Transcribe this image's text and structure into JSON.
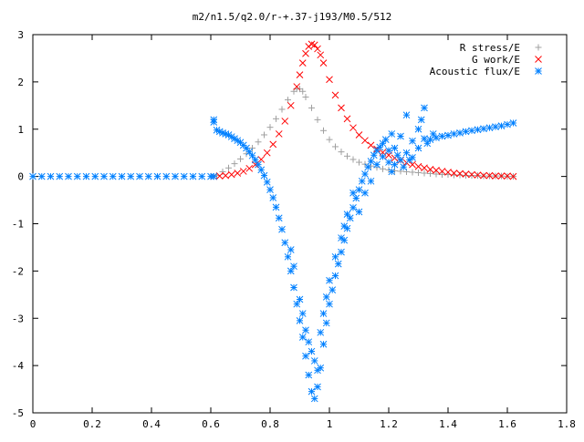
{
  "chart_data": {
    "type": "scatter",
    "title": "m2/n1.5/q2.0/r-+.37-j193/M0.5/512",
    "xlabel": "",
    "ylabel": "",
    "xlim": [
      0,
      1.8
    ],
    "ylim": [
      -5,
      3
    ],
    "x_ticks": [
      "0",
      "0.2",
      "0.4",
      "0.6",
      "0.8",
      "1",
      "1.2",
      "1.4",
      "1.6",
      "1.8"
    ],
    "y_ticks": [
      "3",
      "2",
      "1",
      "0",
      "-1",
      "-2",
      "-3",
      "-4",
      "-5"
    ],
    "grid": false,
    "legend_position": "top-right",
    "series": [
      {
        "name": "R stress/E",
        "marker": "+",
        "color": "#a0a0a0",
        "points": [
          [
            0.62,
            0.02
          ],
          [
            0.64,
            0.1
          ],
          [
            0.66,
            0.18
          ],
          [
            0.68,
            0.27
          ],
          [
            0.7,
            0.37
          ],
          [
            0.72,
            0.48
          ],
          [
            0.74,
            0.6
          ],
          [
            0.76,
            0.73
          ],
          [
            0.78,
            0.88
          ],
          [
            0.8,
            1.04
          ],
          [
            0.82,
            1.22
          ],
          [
            0.84,
            1.42
          ],
          [
            0.86,
            1.62
          ],
          [
            0.88,
            1.8
          ],
          [
            0.89,
            1.85
          ],
          [
            0.9,
            1.85
          ],
          [
            0.91,
            1.8
          ],
          [
            0.92,
            1.68
          ],
          [
            0.94,
            1.45
          ],
          [
            0.96,
            1.2
          ],
          [
            0.98,
            0.97
          ],
          [
            1.0,
            0.78
          ],
          [
            1.02,
            0.63
          ],
          [
            1.04,
            0.52
          ],
          [
            1.06,
            0.43
          ],
          [
            1.08,
            0.36
          ],
          [
            1.1,
            0.3
          ],
          [
            1.12,
            0.26
          ],
          [
            1.14,
            0.22
          ],
          [
            1.16,
            0.19
          ],
          [
            1.18,
            0.16
          ],
          [
            1.2,
            0.14
          ],
          [
            1.22,
            0.12
          ],
          [
            1.24,
            0.11
          ],
          [
            1.26,
            0.1
          ],
          [
            1.28,
            0.09
          ],
          [
            1.3,
            0.08
          ],
          [
            1.32,
            0.07
          ],
          [
            1.34,
            0.06
          ],
          [
            1.36,
            0.05
          ],
          [
            1.38,
            0.04
          ],
          [
            1.4,
            0.04
          ],
          [
            1.42,
            0.03
          ],
          [
            1.44,
            0.03
          ],
          [
            1.46,
            0.02
          ],
          [
            1.48,
            0.02
          ],
          [
            1.5,
            0.02
          ],
          [
            1.52,
            0.01
          ],
          [
            1.54,
            0.01
          ],
          [
            1.56,
            0.01
          ],
          [
            1.58,
            0.01
          ],
          [
            1.6,
            0.0
          ],
          [
            1.62,
            0.0
          ]
        ]
      },
      {
        "name": "G work/E",
        "marker": "x",
        "color": "#ff0000",
        "points": [
          [
            0.61,
            0.0
          ],
          [
            0.63,
            0.01
          ],
          [
            0.65,
            0.02
          ],
          [
            0.67,
            0.04
          ],
          [
            0.69,
            0.07
          ],
          [
            0.71,
            0.11
          ],
          [
            0.73,
            0.17
          ],
          [
            0.75,
            0.25
          ],
          [
            0.77,
            0.36
          ],
          [
            0.79,
            0.5
          ],
          [
            0.81,
            0.68
          ],
          [
            0.83,
            0.9
          ],
          [
            0.85,
            1.17
          ],
          [
            0.87,
            1.5
          ],
          [
            0.89,
            1.9
          ],
          [
            0.9,
            2.15
          ],
          [
            0.91,
            2.4
          ],
          [
            0.92,
            2.6
          ],
          [
            0.93,
            2.75
          ],
          [
            0.94,
            2.8
          ],
          [
            0.95,
            2.78
          ],
          [
            0.96,
            2.7
          ],
          [
            0.97,
            2.57
          ],
          [
            0.98,
            2.4
          ],
          [
            1.0,
            2.05
          ],
          [
            1.02,
            1.72
          ],
          [
            1.04,
            1.45
          ],
          [
            1.06,
            1.22
          ],
          [
            1.08,
            1.03
          ],
          [
            1.1,
            0.88
          ],
          [
            1.12,
            0.76
          ],
          [
            1.14,
            0.66
          ],
          [
            1.16,
            0.58
          ],
          [
            1.18,
            0.51
          ],
          [
            1.2,
            0.45
          ],
          [
            1.22,
            0.39
          ],
          [
            1.24,
            0.34
          ],
          [
            1.26,
            0.29
          ],
          [
            1.28,
            0.25
          ],
          [
            1.3,
            0.21
          ],
          [
            1.32,
            0.18
          ],
          [
            1.34,
            0.15
          ],
          [
            1.36,
            0.13
          ],
          [
            1.38,
            0.11
          ],
          [
            1.4,
            0.09
          ],
          [
            1.42,
            0.07
          ],
          [
            1.44,
            0.06
          ],
          [
            1.46,
            0.05
          ],
          [
            1.48,
            0.04
          ],
          [
            1.5,
            0.03
          ],
          [
            1.52,
            0.02
          ],
          [
            1.54,
            0.02
          ],
          [
            1.56,
            0.01
          ],
          [
            1.58,
            0.01
          ],
          [
            1.6,
            0.01
          ],
          [
            1.62,
            0.0
          ]
        ]
      },
      {
        "name": "Acoustic flux/E",
        "marker": "*",
        "color": "#0080ff",
        "points": [
          [
            0.0,
            0.0
          ],
          [
            0.03,
            0.0
          ],
          [
            0.06,
            0.0
          ],
          [
            0.09,
            0.0
          ],
          [
            0.12,
            0.0
          ],
          [
            0.15,
            0.0
          ],
          [
            0.18,
            0.0
          ],
          [
            0.21,
            0.0
          ],
          [
            0.24,
            0.0
          ],
          [
            0.27,
            0.0
          ],
          [
            0.3,
            0.0
          ],
          [
            0.33,
            0.0
          ],
          [
            0.36,
            0.0
          ],
          [
            0.39,
            0.0
          ],
          [
            0.42,
            0.0
          ],
          [
            0.45,
            0.0
          ],
          [
            0.48,
            0.0
          ],
          [
            0.51,
            0.0
          ],
          [
            0.54,
            0.0
          ],
          [
            0.57,
            0.0
          ],
          [
            0.6,
            0.0
          ],
          [
            0.61,
            0.0
          ],
          [
            0.61,
            1.2
          ],
          [
            0.61,
            1.15
          ],
          [
            0.62,
            0.98
          ],
          [
            0.63,
            0.95
          ],
          [
            0.64,
            0.92
          ],
          [
            0.65,
            0.9
          ],
          [
            0.66,
            0.88
          ],
          [
            0.67,
            0.84
          ],
          [
            0.68,
            0.8
          ],
          [
            0.69,
            0.76
          ],
          [
            0.7,
            0.72
          ],
          [
            0.71,
            0.66
          ],
          [
            0.72,
            0.6
          ],
          [
            0.73,
            0.52
          ],
          [
            0.74,
            0.44
          ],
          [
            0.75,
            0.35
          ],
          [
            0.76,
            0.25
          ],
          [
            0.77,
            0.14
          ],
          [
            0.78,
            0.02
          ],
          [
            0.79,
            -0.12
          ],
          [
            0.8,
            -0.28
          ],
          [
            0.81,
            -0.45
          ],
          [
            0.82,
            -0.65
          ],
          [
            0.83,
            -0.88
          ],
          [
            0.84,
            -1.12
          ],
          [
            0.85,
            -1.4
          ],
          [
            0.86,
            -1.7
          ],
          [
            0.87,
            -2.0
          ],
          [
            0.88,
            -2.35
          ],
          [
            0.89,
            -2.7
          ],
          [
            0.9,
            -3.05
          ],
          [
            0.91,
            -3.4
          ],
          [
            0.92,
            -3.8
          ],
          [
            0.93,
            -4.2
          ],
          [
            0.94,
            -4.55
          ],
          [
            0.95,
            -4.7
          ],
          [
            0.96,
            -4.45
          ],
          [
            0.97,
            -4.05
          ],
          [
            0.98,
            -3.55
          ],
          [
            0.99,
            -3.1
          ],
          [
            1.0,
            -2.7
          ],
          [
            1.01,
            -2.4
          ],
          [
            1.02,
            -2.1
          ],
          [
            1.03,
            -1.85
          ],
          [
            1.04,
            -1.6
          ],
          [
            1.05,
            -1.35
          ],
          [
            1.06,
            -1.1
          ],
          [
            1.07,
            -0.88
          ],
          [
            1.08,
            -0.66
          ],
          [
            1.09,
            -0.46
          ],
          [
            1.1,
            -0.28
          ],
          [
            1.11,
            -0.1
          ],
          [
            1.12,
            0.05
          ],
          [
            1.13,
            0.2
          ],
          [
            1.14,
            0.32
          ],
          [
            1.15,
            0.45
          ],
          [
            1.16,
            0.55
          ],
          [
            1.17,
            0.62
          ],
          [
            1.18,
            0.7
          ],
          [
            1.19,
            0.78
          ],
          [
            0.87,
            -1.55
          ],
          [
            0.88,
            -1.9
          ],
          [
            0.9,
            -2.6
          ],
          [
            0.91,
            -2.9
          ],
          [
            0.92,
            -3.25
          ],
          [
            0.93,
            -3.5
          ],
          [
            0.94,
            -3.7
          ],
          [
            0.95,
            -3.9
          ],
          [
            0.96,
            -4.1
          ],
          [
            0.97,
            -3.3
          ],
          [
            0.98,
            -2.9
          ],
          [
            0.99,
            -2.55
          ],
          [
            1.0,
            -2.2
          ],
          [
            1.02,
            -1.7
          ],
          [
            1.04,
            -1.3
          ],
          [
            1.05,
            -1.05
          ],
          [
            1.06,
            -0.8
          ],
          [
            1.08,
            -0.35
          ],
          [
            1.1,
            -0.75
          ],
          [
            1.12,
            -0.35
          ],
          [
            1.14,
            -0.1
          ],
          [
            1.16,
            0.25
          ],
          [
            1.18,
            0.42
          ],
          [
            1.2,
            0.55
          ],
          [
            1.21,
            0.9
          ],
          [
            1.22,
            0.6
          ],
          [
            1.24,
            0.85
          ],
          [
            1.26,
            1.3
          ],
          [
            1.27,
            0.35
          ],
          [
            1.28,
            0.75
          ],
          [
            1.3,
            1.0
          ],
          [
            1.31,
            1.2
          ],
          [
            1.32,
            1.45
          ],
          [
            1.33,
            0.7
          ],
          [
            1.35,
            0.9
          ],
          [
            1.2,
            0.3
          ],
          [
            1.21,
            0.1
          ],
          [
            1.22,
            0.25
          ],
          [
            1.23,
            0.45
          ],
          [
            1.24,
            0.35
          ],
          [
            1.25,
            0.2
          ],
          [
            1.26,
            0.5
          ],
          [
            1.28,
            0.4
          ],
          [
            1.3,
            0.6
          ],
          [
            1.32,
            0.8
          ],
          [
            1.34,
            0.78
          ],
          [
            1.36,
            0.82
          ],
          [
            1.38,
            0.85
          ],
          [
            1.4,
            0.87
          ],
          [
            1.42,
            0.9
          ],
          [
            1.44,
            0.92
          ],
          [
            1.46,
            0.95
          ],
          [
            1.48,
            0.97
          ],
          [
            1.5,
            0.99
          ],
          [
            1.52,
            1.01
          ],
          [
            1.54,
            1.03
          ],
          [
            1.56,
            1.05
          ],
          [
            1.58,
            1.07
          ],
          [
            1.6,
            1.1
          ],
          [
            1.62,
            1.13
          ]
        ]
      }
    ]
  }
}
